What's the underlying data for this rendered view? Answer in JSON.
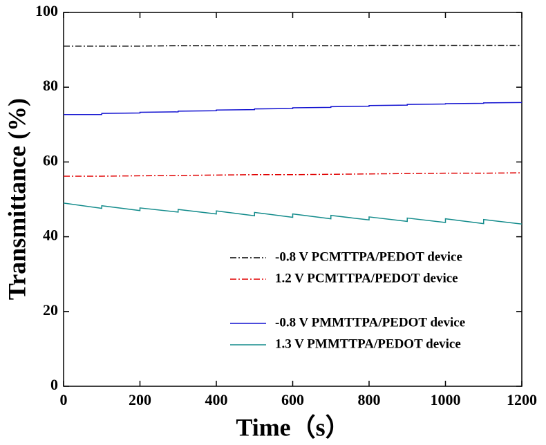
{
  "chart_data": {
    "type": "line",
    "xlabel": "Time（s）",
    "ylabel": "Transmittance (%)",
    "x": [
      0,
      100,
      100,
      200,
      200,
      300,
      300,
      400,
      400,
      500,
      500,
      600,
      600,
      700,
      700,
      800,
      800,
      900,
      900,
      1000,
      1000,
      1100,
      1100,
      1200
    ],
    "series": [
      {
        "name": "-0.8 V PCMTTPA/PEDOT device",
        "color": "#000000",
        "style": "dash-dot",
        "values": [
          91.0,
          91.0,
          91.0,
          91.0,
          91.0,
          91.1,
          91.1,
          91.1,
          91.1,
          91.1,
          91.1,
          91.1,
          91.1,
          91.1,
          91.1,
          91.1,
          91.2,
          91.2,
          91.2,
          91.2,
          91.2,
          91.2,
          91.2,
          91.2
        ]
      },
      {
        "name": "1.2 V PCMTTPA/PEDOT device",
        "color": "#e00000",
        "style": "dash-dot",
        "values": [
          56.2,
          56.2,
          56.2,
          56.3,
          56.3,
          56.4,
          56.4,
          56.5,
          56.5,
          56.6,
          56.6,
          56.6,
          56.6,
          56.7,
          56.7,
          56.8,
          56.8,
          56.9,
          56.9,
          57.0,
          57.0,
          57.0,
          57.0,
          57.1
        ]
      },
      {
        "name": "-0.8 V PMMTTPA/PEDOT device",
        "color": "#1010d0",
        "style": "solid",
        "values": [
          72.7,
          72.7,
          73.0,
          73.1,
          73.3,
          73.4,
          73.6,
          73.7,
          73.9,
          74.0,
          74.2,
          74.3,
          74.5,
          74.6,
          74.8,
          74.9,
          75.1,
          75.2,
          75.4,
          75.5,
          75.6,
          75.7,
          75.8,
          75.9
        ]
      },
      {
        "name": "1.3 V PMMTTPA/PEDOT device",
        "color": "#148c8c",
        "style": "solid",
        "values": [
          49.0,
          47.6,
          48.3,
          47.0,
          47.7,
          46.6,
          47.3,
          46.1,
          46.9,
          45.6,
          46.5,
          45.2,
          46.1,
          44.8,
          45.7,
          44.5,
          45.3,
          44.1,
          45.0,
          43.8,
          44.8,
          43.5,
          44.6,
          43.4
        ]
      }
    ],
    "xlim": [
      0,
      1200
    ],
    "xticks": [
      0,
      200,
      400,
      600,
      800,
      1000,
      1200
    ],
    "ylim": [
      0,
      100
    ],
    "yticks": [
      0,
      20,
      40,
      60,
      80,
      100
    ]
  }
}
